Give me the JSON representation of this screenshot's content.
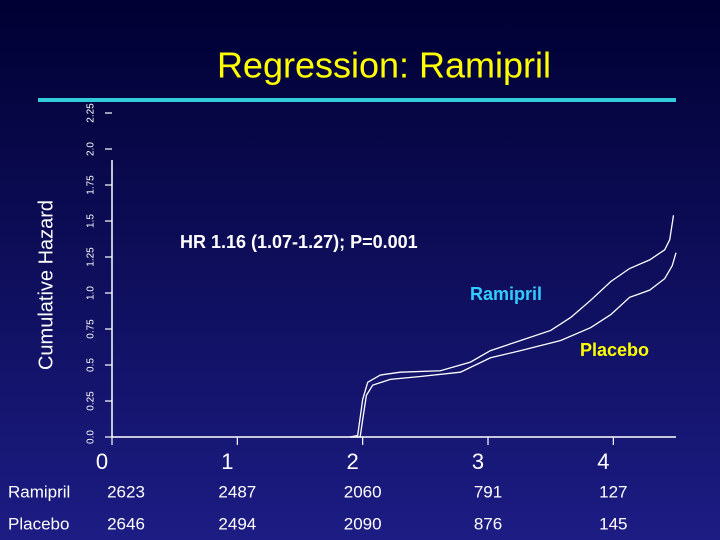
{
  "chart_data": {
    "type": "line",
    "title": "Regression: Ramipril",
    "y_label": "Cumulative Hazard",
    "annotation": "HR 1.16 (1.07-1.27); P=0.001",
    "xlim": [
      0,
      4.5
    ],
    "xticks": [
      0,
      1,
      2,
      3,
      4
    ],
    "ylim": [
      0,
      2.25
    ],
    "yticks": [
      {
        "value": 0,
        "label": "0.0"
      },
      0.25,
      0.5,
      0.75,
      {
        "value": 1,
        "label": "1.0"
      },
      1.25,
      1.5,
      1.75,
      {
        "value": 2,
        "label": "2.0"
      },
      2.25
    ],
    "series": [
      {
        "name": "Ramipril",
        "color": "#ffffff",
        "label_color": "#33ccff",
        "x": [
          1.9,
          1.96,
          2.0,
          2.04,
          2.14,
          2.3,
          2.62,
          2.86,
          3.02,
          3.26,
          3.5,
          3.66,
          3.82,
          3.98,
          4.13,
          4.29,
          4.41,
          4.45,
          4.48
        ],
        "values": [
          0,
          0.01,
          0.26,
          0.38,
          0.43,
          0.45,
          0.46,
          0.52,
          0.6,
          0.67,
          0.74,
          0.83,
          0.95,
          1.08,
          1.17,
          1.23,
          1.3,
          1.37,
          1.54
        ]
      },
      {
        "name": "Placebo",
        "color": "#ffffff",
        "label_color": "#ffff00",
        "x": [
          1.9,
          1.98,
          2.0,
          2.03,
          2.08,
          2.22,
          2.46,
          2.78,
          3.02,
          3.26,
          3.58,
          3.82,
          3.98,
          4.13,
          4.29,
          4.41,
          4.47,
          4.5
        ],
        "values": [
          0,
          0,
          0.12,
          0.29,
          0.36,
          0.4,
          0.42,
          0.45,
          0.55,
          0.6,
          0.67,
          0.76,
          0.85,
          0.97,
          1.02,
          1.1,
          1.19,
          1.28
        ]
      }
    ],
    "risk_table": {
      "rows": [
        {
          "name": "Ramipril",
          "values": [
            2623,
            2487,
            2060,
            791,
            127
          ]
        },
        {
          "name": "Placebo",
          "values": [
            2646,
            2494,
            2090,
            876,
            145
          ]
        }
      ]
    }
  }
}
